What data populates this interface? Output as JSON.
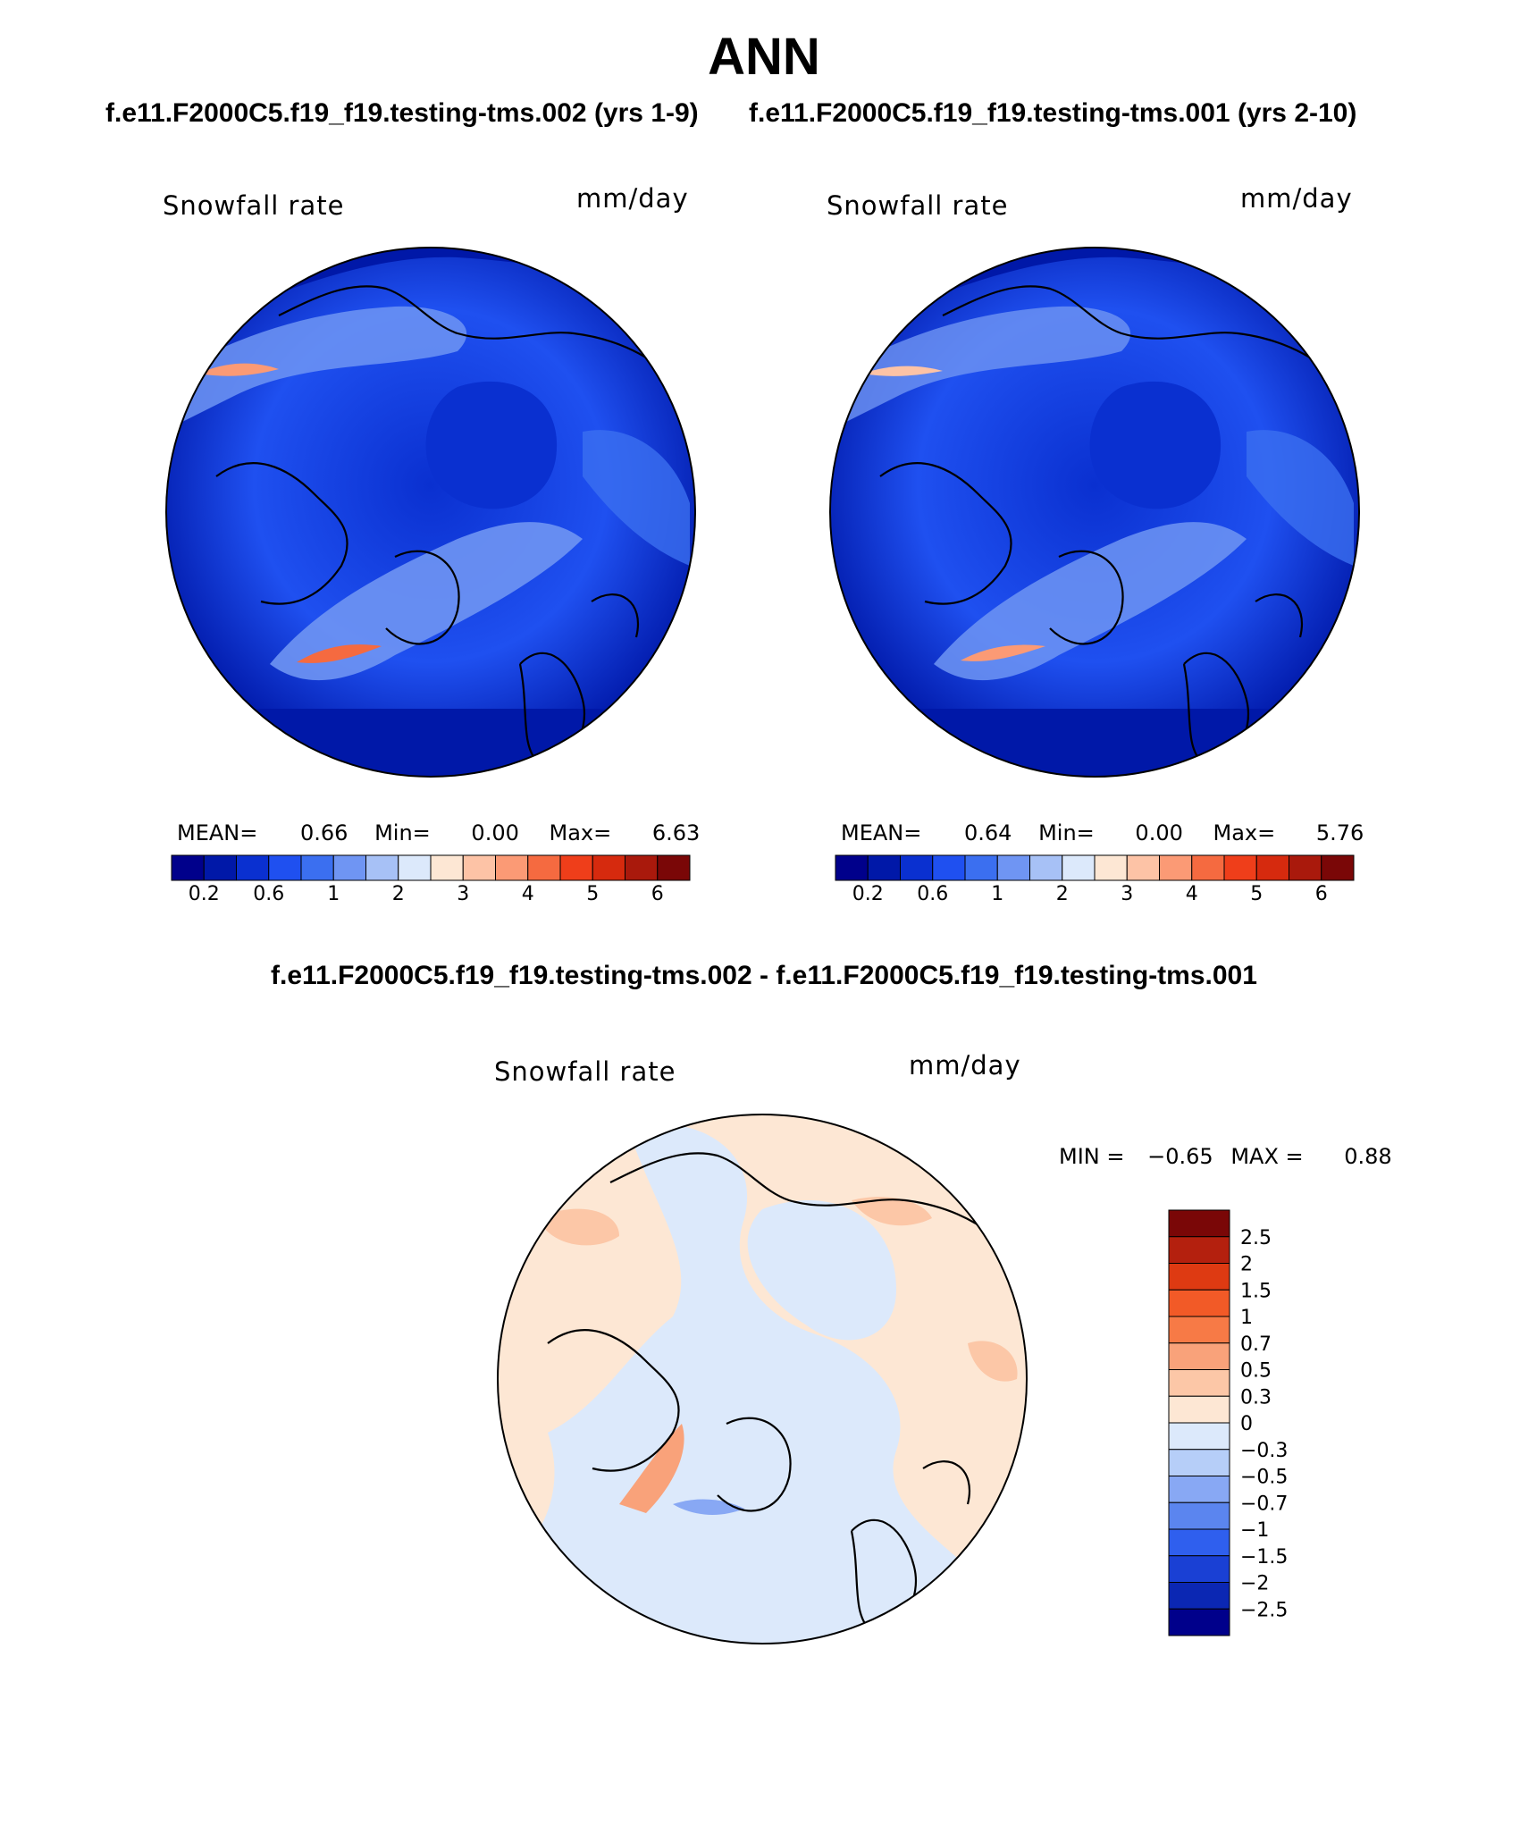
{
  "figure": {
    "title": "ANN",
    "test_case": "f.e11.F2000C5.f19_f19.testing-tms.002 (yrs 1-9)",
    "control_case": "f.e11.F2000C5.f19_f19.testing-tms.001 (yrs 2-10)",
    "diff_title": "f.e11.F2000C5.f19_f19.testing-tms.002 - f.e11.F2000C5.f19_f19.testing-tms.001"
  },
  "panels": [
    {
      "variable": "Snowfall rate",
      "units": "mm/day",
      "stats": {
        "mean_label": "MEAN=",
        "mean": "0.66",
        "min_label": "Min=",
        "min": "0.00",
        "max_label": "Max=",
        "max": "6.63"
      }
    },
    {
      "variable": "Snowfall rate",
      "units": "mm/day",
      "stats": {
        "mean_label": "MEAN=",
        "mean": "0.64",
        "min_label": "Min=",
        "min": "0.00",
        "max_label": "Max=",
        "max": "5.76"
      }
    }
  ],
  "diff_panel": {
    "variable": "Snowfall rate",
    "units": "mm/day",
    "min_label": "MIN =",
    "min": "−0.65",
    "max_label": "MAX =",
    "max": "0.88"
  },
  "colorbar_abs": {
    "colors": [
      "#00008b",
      "#0018a8",
      "#0a30d0",
      "#1f50f0",
      "#3b6ff0",
      "#6f95f3",
      "#a7c1f6",
      "#dce9fb",
      "#fde7d4",
      "#fdc3a6",
      "#fb9a75",
      "#f56a40",
      "#ef3e1a",
      "#d62a0e",
      "#a9190c",
      "#7a0707"
    ],
    "labels": [
      "0.2",
      "0.6",
      "1",
      "2",
      "3",
      "4",
      "5",
      "6"
    ]
  },
  "colorbar_diff": {
    "colors_top_to_bottom": [
      "#7a0707",
      "#b4200e",
      "#de3a12",
      "#f25a27",
      "#f77a46",
      "#f9a27a",
      "#fcc7a7",
      "#fde7d4",
      "#dce9fb",
      "#b6cef8",
      "#88a8f4",
      "#5b85ef",
      "#2f5fee",
      "#1a40d4",
      "#0b27b3",
      "#00008b"
    ],
    "labels": [
      "2.5",
      "2",
      "1.5",
      "1",
      "0.7",
      "0.5",
      "0.3",
      "0",
      "−0.3",
      "−0.5",
      "−0.7",
      "−1",
      "−1.5",
      "−2",
      "−2.5"
    ]
  }
}
